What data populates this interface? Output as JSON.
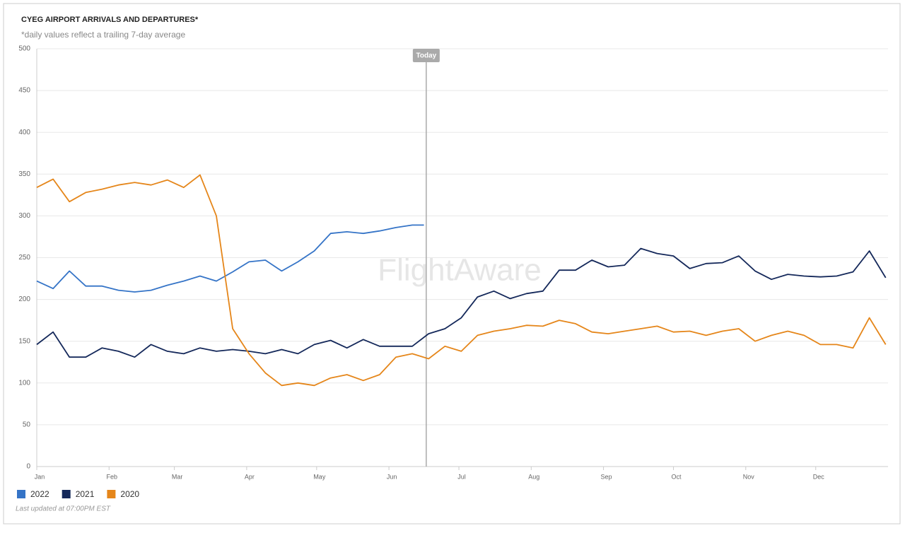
{
  "chart_data": {
    "type": "line",
    "title": "CYEG AIRPORT ARRIVALS AND DEPARTURES*",
    "subtitle": "*daily values reflect a trailing 7-day average",
    "footnote": "Last updated at 07:00PM EST",
    "watermark": "FlightAware",
    "annotation": {
      "x": 167,
      "label": "Today"
    },
    "xlim": [
      0,
      365
    ],
    "xticks": [
      {
        "value": 0,
        "label": "Jan"
      },
      {
        "value": 31,
        "label": "Feb"
      },
      {
        "value": 59,
        "label": "Mar"
      },
      {
        "value": 90,
        "label": "Apr"
      },
      {
        "value": 120,
        "label": "May"
      },
      {
        "value": 151,
        "label": "Jun"
      },
      {
        "value": 181,
        "label": "Jul"
      },
      {
        "value": 212,
        "label": "Aug"
      },
      {
        "value": 243,
        "label": "Sep"
      },
      {
        "value": 273,
        "label": "Oct"
      },
      {
        "value": 304,
        "label": "Nov"
      },
      {
        "value": 334,
        "label": "Dec"
      }
    ],
    "ylim": [
      0,
      500
    ],
    "yticks": [
      0,
      50,
      100,
      150,
      200,
      250,
      300,
      350,
      400,
      450,
      500
    ],
    "grid": true,
    "legend": "bottom-left",
    "series": [
      {
        "name": "2022",
        "color": "#3574c7",
        "x": [
          0,
          7,
          14,
          21,
          28,
          35,
          42,
          49,
          56,
          63,
          70,
          77,
          84,
          91,
          98,
          105,
          112,
          119,
          126,
          133,
          140,
          147,
          154,
          161,
          166
        ],
        "values": [
          222,
          213,
          234,
          216,
          216,
          211,
          209,
          211,
          217,
          222,
          228,
          222,
          233,
          245,
          247,
          234,
          245,
          258,
          279,
          281,
          279,
          282,
          286,
          289,
          289
        ]
      },
      {
        "name": "2021",
        "color": "#14285a",
        "x": [
          0,
          7,
          14,
          21,
          28,
          35,
          42,
          49,
          56,
          63,
          70,
          77,
          84,
          91,
          98,
          105,
          112,
          119,
          126,
          133,
          140,
          147,
          154,
          161,
          168,
          175,
          182,
          189,
          196,
          203,
          210,
          217,
          224,
          231,
          238,
          245,
          252,
          259,
          266,
          273,
          280,
          287,
          294,
          301,
          308,
          315,
          322,
          329,
          336,
          343,
          350,
          357,
          364
        ],
        "values": [
          146,
          161,
          131,
          131,
          142,
          138,
          131,
          146,
          138,
          135,
          142,
          138,
          140,
          138,
          135,
          140,
          135,
          146,
          151,
          142,
          152,
          144,
          144,
          144,
          159,
          165,
          178,
          203,
          210,
          201,
          207,
          210,
          235,
          235,
          247,
          239,
          241,
          261,
          255,
          252,
          237,
          243,
          244,
          252,
          234,
          224,
          230,
          228,
          227,
          228,
          233,
          258,
          226
        ]
      },
      {
        "name": "2020",
        "color": "#e5861a",
        "x": [
          0,
          7,
          14,
          21,
          28,
          35,
          42,
          49,
          56,
          63,
          70,
          77,
          84,
          91,
          98,
          105,
          112,
          119,
          126,
          133,
          140,
          147,
          154,
          161,
          168,
          175,
          182,
          189,
          196,
          203,
          210,
          217,
          224,
          231,
          238,
          245,
          252,
          259,
          266,
          273,
          280,
          287,
          294,
          301,
          308,
          315,
          322,
          329,
          336,
          343,
          350,
          357,
          364
        ],
        "values": [
          334,
          344,
          317,
          328,
          332,
          337,
          340,
          337,
          343,
          334,
          349,
          300,
          165,
          135,
          112,
          97,
          100,
          97,
          106,
          110,
          103,
          110,
          131,
          135,
          129,
          144,
          138,
          157,
          162,
          165,
          169,
          168,
          175,
          171,
          161,
          159,
          162,
          165,
          168,
          161,
          162,
          157,
          162,
          165,
          150,
          157,
          162,
          157,
          146,
          146,
          142,
          178,
          146
        ]
      }
    ]
  }
}
